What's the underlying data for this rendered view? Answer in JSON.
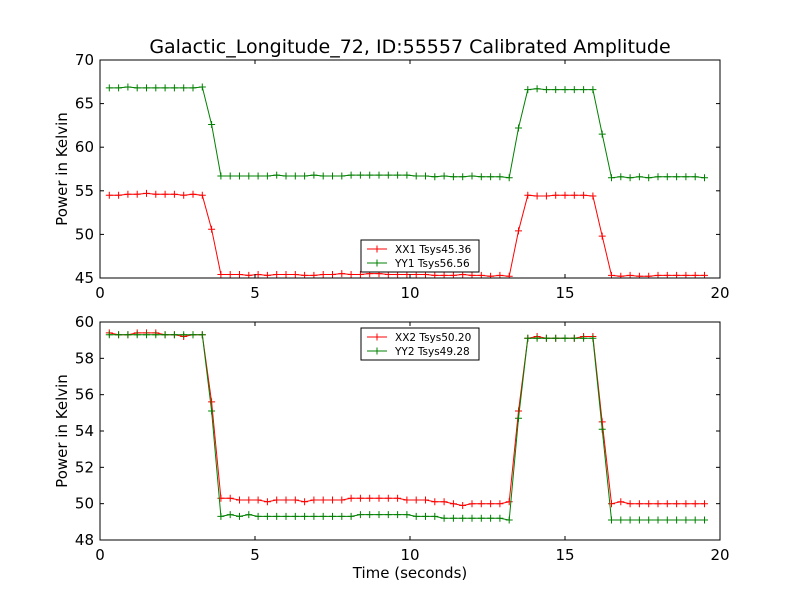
{
  "chart_data": {
    "title": "Galactic_Longitude_72, ID:55557 Calibrated Amplitude",
    "xlabel": "Time (seconds)",
    "subplots": [
      {
        "type": "line",
        "ylabel": "Power in Kelvin",
        "xlim": [
          0,
          20
        ],
        "ylim": [
          45,
          70
        ],
        "xticks": [
          0,
          5,
          10,
          15,
          20
        ],
        "yticks": [
          45,
          50,
          55,
          60,
          65,
          70
        ],
        "legend_position": "lower-center",
        "series": [
          {
            "name": "XX1 Tsys45.36",
            "color": "#ff0000",
            "x": [
              0.3,
              0.6,
              0.9,
              1.2,
              1.5,
              1.8,
              2.1,
              2.4,
              2.7,
              3.0,
              3.3,
              3.6,
              3.9,
              4.2,
              4.5,
              4.8,
              5.1,
              5.4,
              5.7,
              6.0,
              6.3,
              6.6,
              6.9,
              7.2,
              7.5,
              7.8,
              8.1,
              8.4,
              8.7,
              9.0,
              9.3,
              9.6,
              9.9,
              10.2,
              10.5,
              10.8,
              11.1,
              11.4,
              11.7,
              12.0,
              12.3,
              12.6,
              12.9,
              13.2,
              13.5,
              13.8,
              14.1,
              14.4,
              14.7,
              15.0,
              15.3,
              15.6,
              15.9,
              16.2,
              16.5,
              16.8,
              17.1,
              17.4,
              17.7,
              18.0,
              18.3,
              18.6,
              18.9,
              19.2,
              19.5
            ],
            "y": [
              54.5,
              54.5,
              54.6,
              54.6,
              54.7,
              54.6,
              54.6,
              54.6,
              54.5,
              54.6,
              54.5,
              50.6,
              45.4,
              45.4,
              45.4,
              45.3,
              45.4,
              45.3,
              45.4,
              45.4,
              45.4,
              45.3,
              45.3,
              45.4,
              45.4,
              45.5,
              45.4,
              45.4,
              45.5,
              45.5,
              45.4,
              45.4,
              45.4,
              45.4,
              45.4,
              45.3,
              45.3,
              45.3,
              45.4,
              45.3,
              45.3,
              45.2,
              45.3,
              45.2,
              50.4,
              54.5,
              54.4,
              54.4,
              54.5,
              54.5,
              54.5,
              54.5,
              54.4,
              49.8,
              45.3,
              45.2,
              45.3,
              45.2,
              45.2,
              45.3,
              45.3,
              45.3,
              45.3,
              45.3,
              45.3
            ]
          },
          {
            "name": "YY1 Tsys56.56",
            "color": "#008000",
            "x": [
              0.3,
              0.6,
              0.9,
              1.2,
              1.5,
              1.8,
              2.1,
              2.4,
              2.7,
              3.0,
              3.3,
              3.6,
              3.9,
              4.2,
              4.5,
              4.8,
              5.1,
              5.4,
              5.7,
              6.0,
              6.3,
              6.6,
              6.9,
              7.2,
              7.5,
              7.8,
              8.1,
              8.4,
              8.7,
              9.0,
              9.3,
              9.6,
              9.9,
              10.2,
              10.5,
              10.8,
              11.1,
              11.4,
              11.7,
              12.0,
              12.3,
              12.6,
              12.9,
              13.2,
              13.5,
              13.8,
              14.1,
              14.4,
              14.7,
              15.0,
              15.3,
              15.6,
              15.9,
              16.2,
              16.5,
              16.8,
              17.1,
              17.4,
              17.7,
              18.0,
              18.3,
              18.6,
              18.9,
              19.2,
              19.5
            ],
            "y": [
              66.8,
              66.8,
              66.9,
              66.8,
              66.8,
              66.8,
              66.8,
              66.8,
              66.8,
              66.8,
              66.9,
              62.6,
              56.7,
              56.7,
              56.7,
              56.7,
              56.7,
              56.7,
              56.8,
              56.7,
              56.7,
              56.7,
              56.8,
              56.7,
              56.7,
              56.7,
              56.8,
              56.8,
              56.8,
              56.8,
              56.8,
              56.8,
              56.8,
              56.7,
              56.7,
              56.6,
              56.7,
              56.6,
              56.6,
              56.7,
              56.6,
              56.6,
              56.6,
              56.5,
              62.2,
              66.6,
              66.7,
              66.6,
              66.6,
              66.6,
              66.6,
              66.6,
              66.6,
              61.5,
              56.5,
              56.6,
              56.5,
              56.6,
              56.5,
              56.6,
              56.6,
              56.6,
              56.6,
              56.6,
              56.5
            ]
          }
        ]
      },
      {
        "type": "line",
        "ylabel": "Power in Kelvin",
        "xlabel": "Time (seconds)",
        "xlim": [
          0,
          20
        ],
        "ylim": [
          48,
          60
        ],
        "xticks": [
          0,
          5,
          10,
          15,
          20
        ],
        "yticks": [
          48,
          50,
          52,
          54,
          56,
          58,
          60
        ],
        "legend_position": "upper-center",
        "series": [
          {
            "name": "XX2 Tsys50.20",
            "color": "#ff0000",
            "x": [
              0.3,
              0.6,
              0.9,
              1.2,
              1.5,
              1.8,
              2.1,
              2.4,
              2.7,
              3.0,
              3.3,
              3.6,
              3.9,
              4.2,
              4.5,
              4.8,
              5.1,
              5.4,
              5.7,
              6.0,
              6.3,
              6.6,
              6.9,
              7.2,
              7.5,
              7.8,
              8.1,
              8.4,
              8.7,
              9.0,
              9.3,
              9.6,
              9.9,
              10.2,
              10.5,
              10.8,
              11.1,
              11.4,
              11.7,
              12.0,
              12.3,
              12.6,
              12.9,
              13.2,
              13.5,
              13.8,
              14.1,
              14.4,
              14.7,
              15.0,
              15.3,
              15.6,
              15.9,
              16.2,
              16.5,
              16.8,
              17.1,
              17.4,
              17.7,
              18.0,
              18.3,
              18.6,
              18.9,
              19.2,
              19.5
            ],
            "y": [
              59.4,
              59.3,
              59.3,
              59.4,
              59.4,
              59.4,
              59.3,
              59.3,
              59.2,
              59.3,
              59.3,
              55.6,
              50.3,
              50.3,
              50.2,
              50.2,
              50.2,
              50.1,
              50.2,
              50.2,
              50.2,
              50.1,
              50.2,
              50.2,
              50.2,
              50.2,
              50.3,
              50.3,
              50.3,
              50.3,
              50.3,
              50.3,
              50.2,
              50.2,
              50.2,
              50.1,
              50.1,
              50.0,
              49.9,
              50.0,
              50.0,
              50.0,
              50.0,
              50.1,
              55.1,
              59.1,
              59.2,
              59.1,
              59.1,
              59.1,
              59.1,
              59.2,
              59.2,
              54.5,
              50.0,
              50.1,
              50.0,
              50.0,
              50.0,
              50.0,
              50.0,
              50.0,
              50.0,
              50.0,
              50.0
            ]
          },
          {
            "name": "YY2 Tsys49.28",
            "color": "#008000",
            "x": [
              0.3,
              0.6,
              0.9,
              1.2,
              1.5,
              1.8,
              2.1,
              2.4,
              2.7,
              3.0,
              3.3,
              3.6,
              3.9,
              4.2,
              4.5,
              4.8,
              5.1,
              5.4,
              5.7,
              6.0,
              6.3,
              6.6,
              6.9,
              7.2,
              7.5,
              7.8,
              8.1,
              8.4,
              8.7,
              9.0,
              9.3,
              9.6,
              9.9,
              10.2,
              10.5,
              10.8,
              11.1,
              11.4,
              11.7,
              12.0,
              12.3,
              12.6,
              12.9,
              13.2,
              13.5,
              13.8,
              14.1,
              14.4,
              14.7,
              15.0,
              15.3,
              15.6,
              15.9,
              16.2,
              16.5,
              16.8,
              17.1,
              17.4,
              17.7,
              18.0,
              18.3,
              18.6,
              18.9,
              19.2,
              19.5
            ],
            "y": [
              59.3,
              59.3,
              59.3,
              59.3,
              59.3,
              59.3,
              59.3,
              59.3,
              59.3,
              59.3,
              59.3,
              55.1,
              49.3,
              49.4,
              49.3,
              49.4,
              49.3,
              49.3,
              49.3,
              49.3,
              49.3,
              49.3,
              49.3,
              49.3,
              49.3,
              49.3,
              49.3,
              49.4,
              49.4,
              49.4,
              49.4,
              49.4,
              49.4,
              49.3,
              49.3,
              49.3,
              49.2,
              49.2,
              49.2,
              49.2,
              49.2,
              49.2,
              49.2,
              49.1,
              54.7,
              59.1,
              59.1,
              59.1,
              59.1,
              59.1,
              59.1,
              59.1,
              59.1,
              54.1,
              49.1,
              49.1,
              49.1,
              49.1,
              49.1,
              49.1,
              49.1,
              49.1,
              49.1,
              49.1,
              49.1
            ]
          }
        ]
      }
    ]
  }
}
